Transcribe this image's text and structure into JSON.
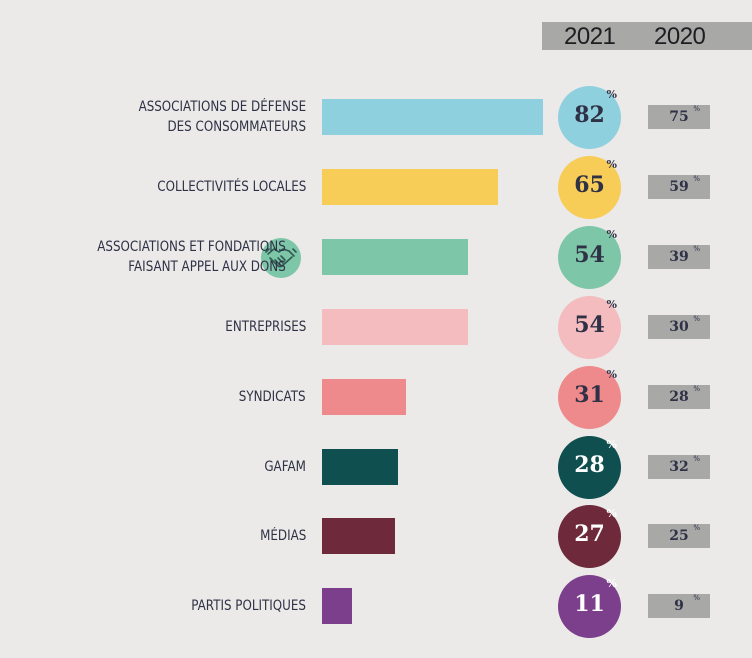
{
  "chart_data": {
    "type": "bar",
    "orientation": "horizontal",
    "column_headers": [
      "2021",
      "2020"
    ],
    "categories": [
      "ASSOCIATIONS DE DÉFENSE\nDES CONSOMMATEURS",
      "COLLECTIVITÉS LOCALES",
      "ASSOCIATIONS ET FONDATIONS\nFAISANT APPEL AUX DONS",
      "ENTREPRISES",
      "SYNDICATS",
      "GAFAM",
      "MÉDIAS",
      "PARTIS POLITIQUES"
    ],
    "series": [
      {
        "name": "2021",
        "values": [
          82,
          65,
          54,
          54,
          31,
          28,
          27,
          11
        ]
      },
      {
        "name": "2020",
        "values": [
          75,
          59,
          39,
          30,
          28,
          32,
          25,
          9
        ]
      }
    ],
    "unit": "%",
    "colors": [
      "#8fd0de",
      "#f7cc57",
      "#7ec6a8",
      "#f4bcbf",
      "#ef8a8c",
      "#0f4f4f",
      "#6e2a3a",
      "#7b3f8c"
    ],
    "value_text_colors": [
      "#2f3146",
      "#2f3146",
      "#2f3146",
      "#2f3146",
      "#2f3146",
      "#ffffff",
      "#ffffff",
      "#ffffff"
    ],
    "icons": {
      "2": "handshake-icon"
    },
    "grid": false,
    "legend": "none"
  }
}
